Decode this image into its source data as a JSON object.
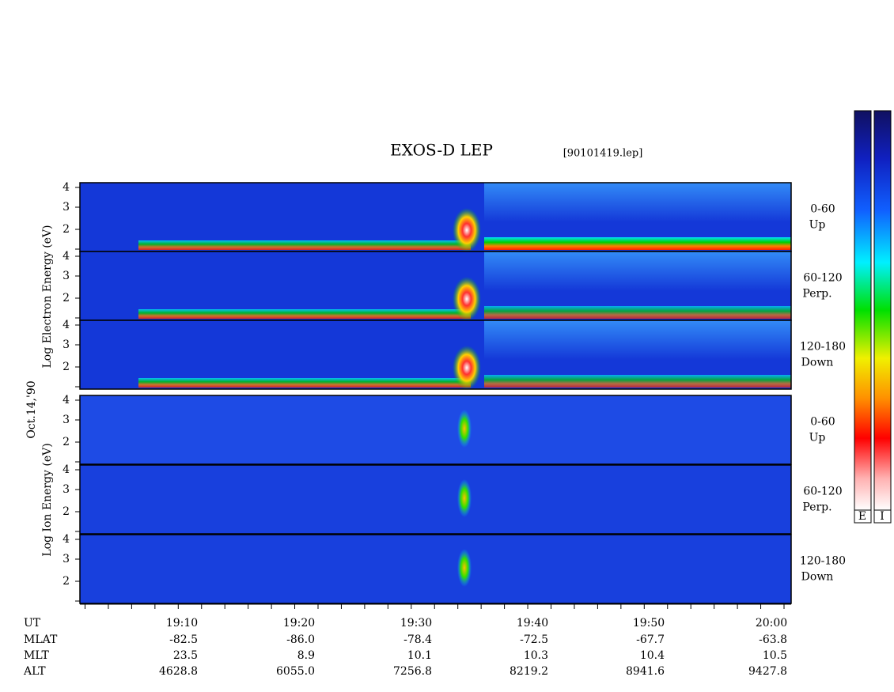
{
  "header": {
    "title": "EXOS-D LEP",
    "file": "[90101419.lep]"
  },
  "electron": {
    "axis_label": "Log  Electron  Energy (eV)",
    "panels": [
      {
        "range": "0-60",
        "direction": "Up"
      },
      {
        "range": "60-120",
        "direction": "Perp."
      },
      {
        "range": "120-180",
        "direction": "Down"
      }
    ]
  },
  "date": "Oct.14,'90",
  "ion": {
    "axis_label": "Log  Ion  Energy (eV)",
    "panels": [
      {
        "range": "0-60",
        "direction": "Up"
      },
      {
        "range": "60-120",
        "direction": "Perp."
      },
      {
        "range": "120-180",
        "direction": "Down"
      }
    ]
  },
  "energy_ticks": [
    "4",
    "3",
    "2"
  ],
  "ephemeris": {
    "rows": [
      {
        "label": "UT",
        "values": [
          "19:10",
          "19:20",
          "19:30",
          "19:40",
          "19:50",
          "20:00"
        ]
      },
      {
        "label": "MLAT",
        "values": [
          "-82.5",
          "-86.0",
          "-78.4",
          "-72.5",
          "-67.7",
          "-63.8"
        ]
      },
      {
        "label": "MLT",
        "values": [
          "23.5",
          "8.9",
          "10.1",
          "10.3",
          "10.4",
          "10.5"
        ]
      },
      {
        "label": "ALT",
        "values": [
          "4628.8",
          "6055.0",
          "7256.8",
          "8219.2",
          "8941.6",
          "9427.8"
        ]
      }
    ]
  },
  "colorbars": [
    "E",
    "I"
  ]
}
